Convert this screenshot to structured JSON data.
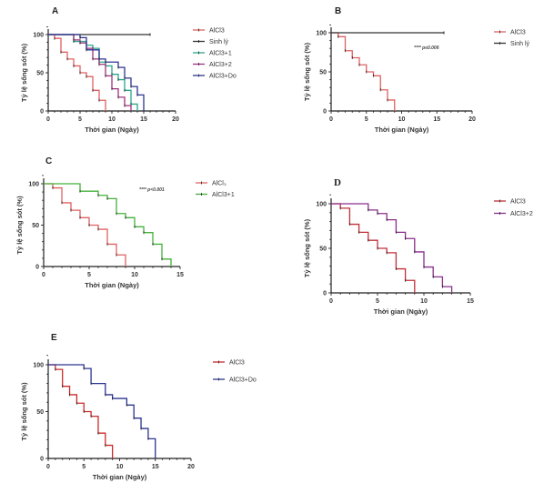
{
  "colors": {
    "AlCl3": "#e06060",
    "Sinh lý": "#333333",
    "AlCl3+1": "#2aa88a",
    "AlCl3+2": "#a0307f",
    "AlCl3+Do": "#2b3590",
    "AlCl3+1_C": "#45b03a",
    "AlCl3_E": "#cc2a2a",
    "AlCl3_D": "#c0303a",
    "AlCl3+2_D": "#8a2f8a",
    "axis": "#222222"
  },
  "chart_data": [
    {
      "id": "A",
      "type": "line",
      "subtype": "kaplan-meier",
      "panel_label": "A",
      "xlabel": "Thời gian (Ngày)",
      "ylabel": "Tỷ lệ sống sót (%)",
      "xlim": [
        0,
        20
      ],
      "ylim": [
        0,
        100
      ],
      "xticks": [
        0,
        5,
        10,
        15,
        20
      ],
      "yticks": [
        0,
        50,
        100
      ],
      "legend_position": "right",
      "annotation": "",
      "series": [
        {
          "name": "AlCl3",
          "color_key": "AlCl3",
          "x": [
            0,
            1,
            2,
            3,
            4,
            5,
            6,
            7,
            8,
            9
          ],
          "y": [
            100,
            95,
            77,
            68,
            59,
            50,
            45,
            27,
            14,
            0
          ]
        },
        {
          "name": "Sinh lý",
          "color_key": "Sinh lý",
          "x": [
            0,
            16
          ],
          "y": [
            100,
            100
          ]
        },
        {
          "name": "AlCl3+1",
          "color_key": "AlCl3+1",
          "x": [
            0,
            4,
            6,
            7,
            8,
            9,
            10,
            11,
            12,
            13,
            14
          ],
          "y": [
            100,
            91,
            86,
            82,
            64,
            59,
            48,
            41,
            27,
            9,
            0
          ]
        },
        {
          "name": "AlCl3+2",
          "color_key": "AlCl3+2",
          "x": [
            0,
            4,
            5,
            6,
            7,
            8,
            9,
            10,
            11,
            12,
            13
          ],
          "y": [
            100,
            93,
            89,
            82,
            68,
            61,
            46,
            29,
            18,
            7,
            0
          ]
        },
        {
          "name": "AlCl3+Do",
          "color_key": "AlCl3+Do",
          "x": [
            0,
            5,
            6,
            8,
            9,
            11,
            12,
            13,
            14,
            15
          ],
          "y": [
            100,
            96,
            80,
            68,
            64,
            57,
            43,
            32,
            21,
            0
          ]
        }
      ]
    },
    {
      "id": "B",
      "type": "line",
      "subtype": "kaplan-meier",
      "panel_label": "B",
      "xlabel": "Thời gian (Ngày)",
      "ylabel": "Tỷ lệ sống sót (%)",
      "xlim": [
        0,
        20
      ],
      "ylim": [
        0,
        100
      ],
      "xticks": [
        0,
        5,
        10,
        15,
        20
      ],
      "yticks": [
        0,
        50,
        100
      ],
      "legend_position": "right",
      "annotation": "**** p≤0.006",
      "series": [
        {
          "name": "AlCl3",
          "color_key": "AlCl3",
          "x": [
            0,
            1,
            2,
            3,
            4,
            5,
            6,
            7,
            8,
            9
          ],
          "y": [
            100,
            95,
            77,
            68,
            59,
            50,
            45,
            27,
            14,
            0
          ]
        },
        {
          "name": "Sinh lý",
          "color_key": "Sinh lý",
          "x": [
            0,
            16
          ],
          "y": [
            100,
            100
          ]
        }
      ]
    },
    {
      "id": "C",
      "type": "line",
      "subtype": "kaplan-meier",
      "panel_label": "C",
      "xlabel": "Thời gian (Ngày)",
      "ylabel": "Tỷ lệ sống sót (%)",
      "xlim": [
        0,
        15
      ],
      "ylim": [
        0,
        100
      ],
      "xticks": [
        0,
        5,
        10,
        15
      ],
      "yticks": [
        0,
        50,
        100
      ],
      "legend_position": "right",
      "annotation": "**** p<0.001",
      "series": [
        {
          "name": "AlCl₃",
          "color_key": "AlCl3",
          "x": [
            0,
            1,
            2,
            3,
            4,
            5,
            6,
            7,
            8,
            9
          ],
          "y": [
            100,
            95,
            77,
            68,
            59,
            50,
            45,
            27,
            14,
            0
          ]
        },
        {
          "name": "AlCl3+1",
          "color_key": "AlCl3+1_C",
          "x": [
            0,
            4,
            6,
            7,
            8,
            9,
            10,
            11,
            12,
            13,
            14
          ],
          "y": [
            100,
            91,
            86,
            82,
            64,
            59,
            48,
            41,
            27,
            9,
            0
          ]
        }
      ]
    },
    {
      "id": "D",
      "type": "line",
      "subtype": "kaplan-meier",
      "panel_label": "D",
      "xlabel": "Thời gian (Ngày)",
      "ylabel": "Tỷ lệ sống sót (%)",
      "xlim": [
        0,
        15
      ],
      "ylim": [
        0,
        100
      ],
      "xticks": [
        0,
        5,
        10,
        15
      ],
      "yticks": [
        0,
        50,
        100
      ],
      "legend_position": "right",
      "annotation": "",
      "series": [
        {
          "name": "AlCl3",
          "color_key": "AlCl3_D",
          "x": [
            0,
            1,
            2,
            3,
            4,
            5,
            6,
            7,
            8,
            9
          ],
          "y": [
            100,
            95,
            77,
            68,
            59,
            50,
            45,
            27,
            14,
            0
          ]
        },
        {
          "name": "AlCl3+2",
          "color_key": "AlCl3+2_D",
          "x": [
            0,
            4,
            5,
            6,
            7,
            8,
            9,
            10,
            11,
            12,
            13
          ],
          "y": [
            100,
            93,
            89,
            82,
            68,
            61,
            46,
            29,
            18,
            7,
            0
          ]
        }
      ]
    },
    {
      "id": "E",
      "type": "line",
      "subtype": "kaplan-meier",
      "panel_label": "E",
      "xlabel": "Thời gian (Ngày)",
      "ylabel": "Tỷ lệ sống sót (%)",
      "xlim": [
        0,
        20
      ],
      "ylim": [
        0,
        100
      ],
      "xticks": [
        0,
        5,
        10,
        15,
        20
      ],
      "yticks": [
        0,
        50,
        100
      ],
      "legend_position": "right",
      "annotation": "",
      "series": [
        {
          "name": "AlCl3",
          "color_key": "AlCl3_E",
          "x": [
            0,
            1,
            2,
            3,
            4,
            5,
            6,
            7,
            8,
            9
          ],
          "y": [
            100,
            95,
            77,
            68,
            59,
            50,
            45,
            27,
            14,
            0
          ]
        },
        {
          "name": "AlCl3+Do",
          "color_key": "AlCl3+Do",
          "x": [
            0,
            5,
            6,
            8,
            9,
            11,
            12,
            13,
            14,
            15
          ],
          "y": [
            100,
            96,
            80,
            68,
            64,
            57,
            43,
            32,
            21,
            0
          ]
        }
      ]
    }
  ]
}
